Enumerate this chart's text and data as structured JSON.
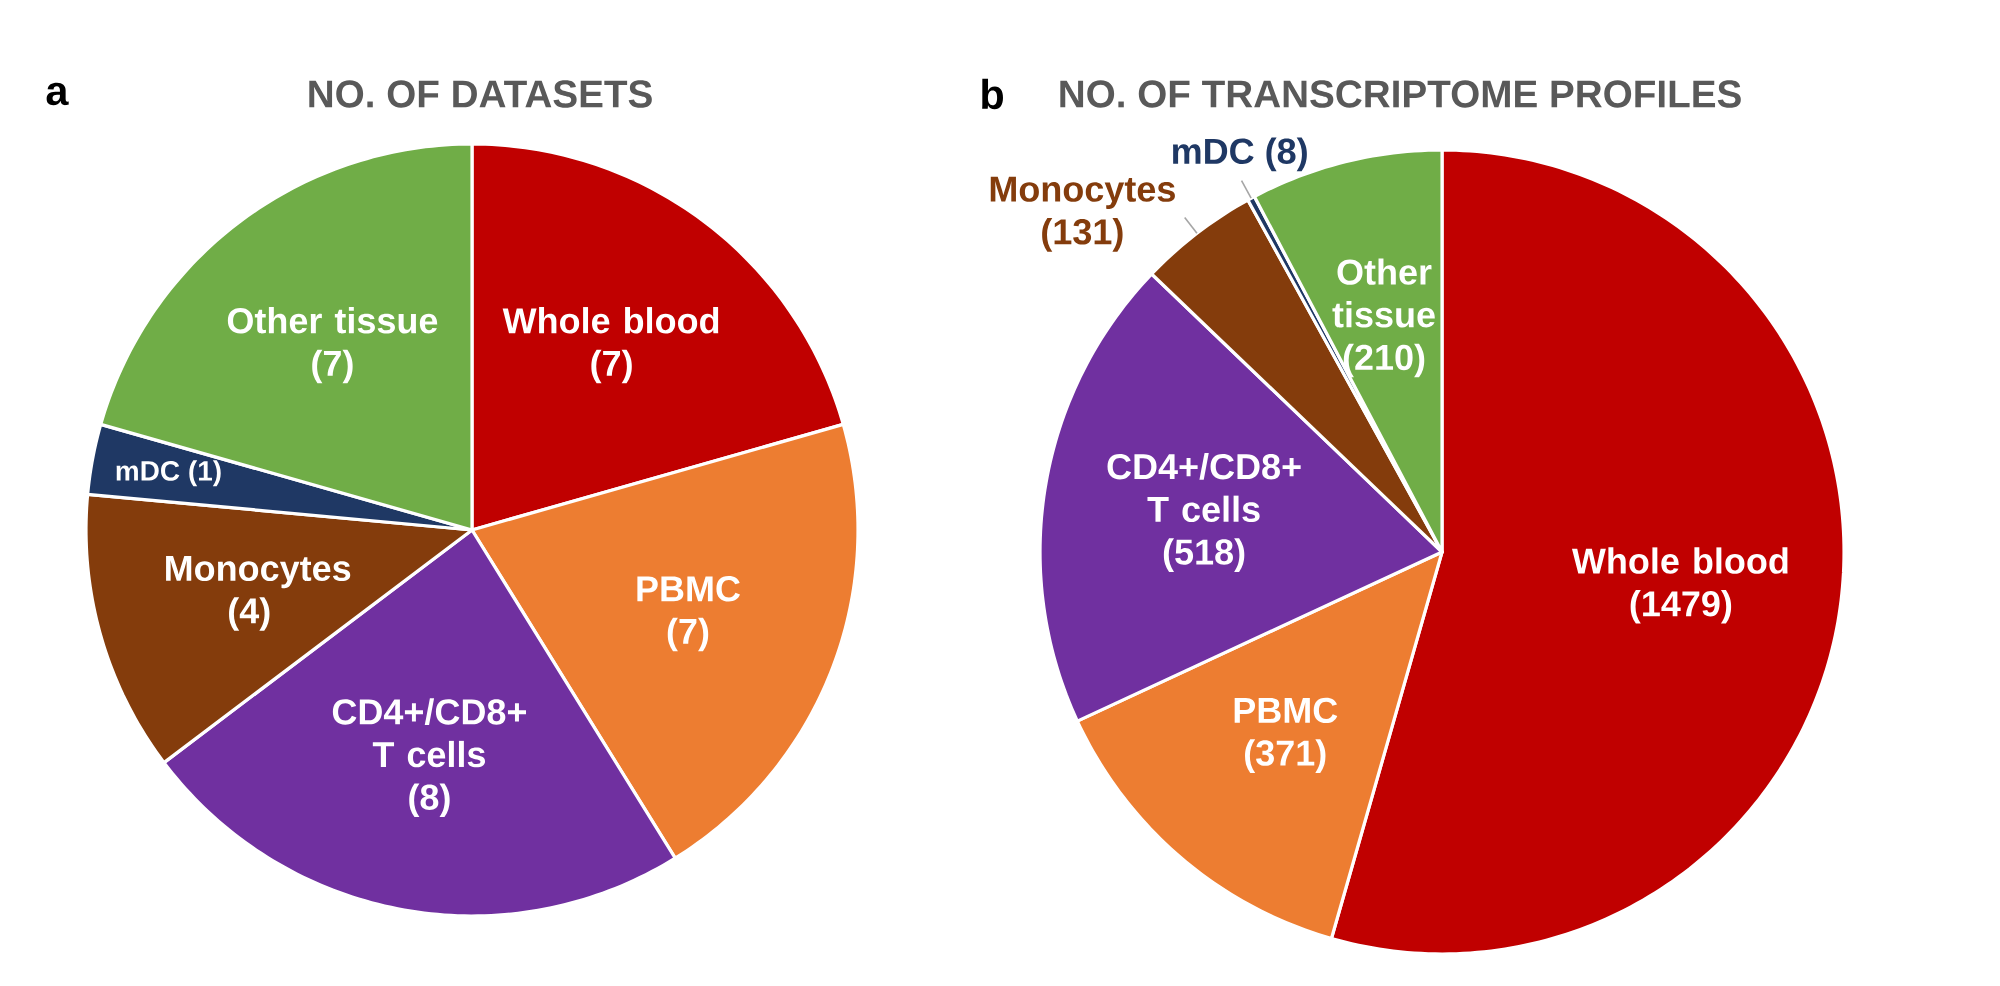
{
  "chart_data": [
    {
      "type": "pie",
      "title": "NO. OF DATASETS",
      "annotations": [
        "a"
      ],
      "categories": [
        "Whole blood",
        "PBMC",
        "CD4+/CD8+ T cells",
        "Monocytes",
        "mDC",
        "Other tissue"
      ],
      "values": [
        7,
        7,
        8,
        4,
        1,
        7
      ],
      "value_labels": [
        "(7)",
        "(7)",
        "(8)",
        "(4)",
        "(1)",
        "(7)"
      ],
      "colors": [
        "#c00000",
        "#ed7d31",
        "#7030a0",
        "#843c0c",
        "#1f3864",
        "#70ad47"
      ]
    },
    {
      "type": "pie",
      "title": "NO. OF TRANSCRIPTOME PROFILES",
      "annotations": [
        "b"
      ],
      "categories": [
        "Whole blood",
        "PBMC",
        "CD4+/CD8+ T cells",
        "Monocytes",
        "mDC",
        "Other tissue"
      ],
      "values": [
        1479,
        371,
        518,
        131,
        8,
        210
      ],
      "value_labels": [
        "(1479)",
        "(371)",
        "(518)",
        "(131)",
        "(8)",
        "(210)"
      ],
      "colors": [
        "#c00000",
        "#ed7d31",
        "#7030a0",
        "#843c0c",
        "#1f3864",
        "#70ad47"
      ]
    }
  ]
}
